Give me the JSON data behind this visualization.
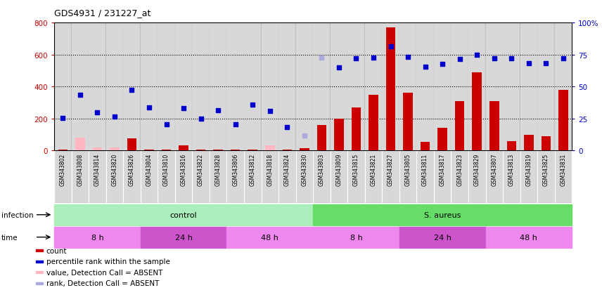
{
  "title": "GDS4931 / 231227_at",
  "samples": [
    "GSM343802",
    "GSM343808",
    "GSM343814",
    "GSM343820",
    "GSM343826",
    "GSM343804",
    "GSM343810",
    "GSM343816",
    "GSM343822",
    "GSM343828",
    "GSM343806",
    "GSM343812",
    "GSM343818",
    "GSM343824",
    "GSM343830",
    "GSM343803",
    "GSM343809",
    "GSM343815",
    "GSM343821",
    "GSM343827",
    "GSM343805",
    "GSM343811",
    "GSM343817",
    "GSM343823",
    "GSM343829",
    "GSM343807",
    "GSM343813",
    "GSM343819",
    "GSM343825",
    "GSM343831"
  ],
  "count_values": [
    5,
    5,
    5,
    5,
    75,
    5,
    5,
    30,
    5,
    5,
    5,
    5,
    5,
    5,
    15,
    160,
    200,
    270,
    350,
    770,
    360,
    55,
    140,
    310,
    490,
    310,
    60,
    100,
    90,
    380
  ],
  "absent_value_bars": [
    0,
    80,
    20,
    20,
    0,
    0,
    0,
    0,
    0,
    0,
    0,
    0,
    30,
    0,
    0,
    0,
    0,
    0,
    0,
    0,
    0,
    0,
    0,
    0,
    0,
    0,
    0,
    0,
    0,
    0
  ],
  "rank_values": [
    205,
    350,
    240,
    210,
    380,
    270,
    165,
    265,
    200,
    250,
    165,
    285,
    245,
    145,
    95,
    580,
    520,
    575,
    580,
    650,
    585,
    525,
    540,
    570,
    600,
    575,
    575,
    545,
    545,
    575
  ],
  "rank_is_absent": [
    false,
    false,
    false,
    false,
    false,
    false,
    false,
    false,
    false,
    false,
    false,
    false,
    false,
    false,
    true,
    true,
    false,
    false,
    false,
    false,
    false,
    false,
    false,
    false,
    false,
    false,
    false,
    false,
    false,
    false
  ],
  "y_max": 800,
  "y_ticks_left": [
    0,
    200,
    400,
    600,
    800
  ],
  "y_ticks_right": [
    0,
    200,
    400,
    600,
    800
  ],
  "y_right_labels": [
    "0",
    "25",
    "50",
    "75",
    "100%"
  ],
  "bar_color_red": "#CC0000",
  "bar_color_pink": "#FFB6C1",
  "dot_blue": "#0000CC",
  "dot_ltblue": "#AAAADD",
  "infection_labels": [
    "control",
    "S. aureus"
  ],
  "infection_starts": [
    0,
    15
  ],
  "infection_ends": [
    15,
    30
  ],
  "infection_colors": [
    "#AAEEBB",
    "#66DD66"
  ],
  "time_labels": [
    "8 h",
    "24 h",
    "48 h",
    "8 h",
    "24 h",
    "48 h"
  ],
  "time_starts": [
    0,
    5,
    10,
    15,
    20,
    25
  ],
  "time_ends": [
    5,
    10,
    15,
    20,
    25,
    30
  ],
  "time_colors": [
    "#EE88EE",
    "#CC55CC",
    "#EE88EE",
    "#EE88EE",
    "#CC55CC",
    "#EE88EE"
  ],
  "col_bg": "#D8D8D8",
  "col_sep": "#BBBBBB",
  "legend": [
    {
      "color": "#CC0000",
      "label": "count"
    },
    {
      "color": "#0000CC",
      "label": "percentile rank within the sample"
    },
    {
      "color": "#FFB6C1",
      "label": "value, Detection Call = ABSENT"
    },
    {
      "color": "#AAAADD",
      "label": "rank, Detection Call = ABSENT"
    }
  ]
}
